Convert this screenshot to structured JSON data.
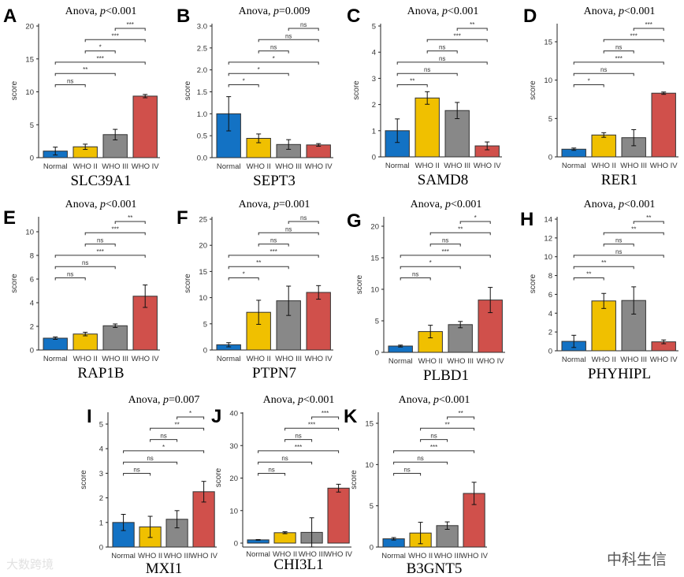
{
  "common": {
    "categories": [
      "Normal",
      "WHO II",
      "WHO III",
      "WHO IV"
    ],
    "colors": [
      "#1372c4",
      "#f0c000",
      "#888888",
      "#d0504b"
    ],
    "ylabel": "score",
    "title_prefix": "Anova, ",
    "title_p": "p",
    "comparisons": [
      [
        "Normal",
        "WHO II"
      ],
      [
        "Normal",
        "WHO III"
      ],
      [
        "Normal",
        "WHO IV"
      ],
      [
        "WHO II",
        "WHO III"
      ],
      [
        "WHO II",
        "WHO IV"
      ],
      [
        "WHO III",
        "WHO IV"
      ]
    ]
  },
  "chart_data": [
    {
      "type": "bar",
      "letter": "A",
      "gene": "SLC39A1",
      "stat": "<0.001",
      "ticks": [
        0,
        5,
        10,
        15,
        20
      ],
      "values": [
        1.0,
        1.65,
        3.5,
        9.35
      ],
      "errors": [
        0.6,
        0.4,
        0.8,
        0.25
      ],
      "sig": [
        "ns",
        "**",
        "***",
        "*",
        "***",
        "***"
      ]
    },
    {
      "type": "bar",
      "letter": "B",
      "gene": "SEPT3",
      "stat": "=0.009",
      "ticks": [
        0.0,
        0.5,
        1.0,
        1.5,
        2.0,
        2.5,
        3.0
      ],
      "values": [
        1.0,
        0.44,
        0.3,
        0.29
      ],
      "errors": [
        0.39,
        0.1,
        0.11,
        0.03
      ],
      "sig": [
        "*",
        "*",
        "*",
        "ns",
        "ns",
        "ns"
      ]
    },
    {
      "type": "bar",
      "letter": "C",
      "gene": "SAMD8",
      "stat": "<0.001",
      "ticks": [
        0,
        1,
        2,
        3,
        4,
        5
      ],
      "values": [
        1.0,
        2.25,
        1.77,
        0.42
      ],
      "errors": [
        0.45,
        0.24,
        0.31,
        0.15
      ],
      "sig": [
        "**",
        "ns",
        "ns",
        "ns",
        "***",
        "**"
      ]
    },
    {
      "type": "bar",
      "letter": "D",
      "gene": "RER1",
      "stat": "<0.001",
      "ticks": [
        0,
        5,
        10,
        15
      ],
      "values": [
        1.0,
        2.85,
        2.5,
        8.3
      ],
      "errors": [
        0.15,
        0.3,
        1.05,
        0.15
      ],
      "sig": [
        "*",
        "ns",
        "***",
        "ns",
        "***",
        "***"
      ]
    },
    {
      "type": "bar",
      "letter": "E",
      "gene": "RAP1B",
      "stat": "<0.001",
      "ticks": [
        0,
        2,
        4,
        6,
        8,
        10
      ],
      "values": [
        1.0,
        1.35,
        2.05,
        4.55
      ],
      "errors": [
        0.1,
        0.15,
        0.15,
        0.95
      ],
      "sig": [
        "ns",
        "ns",
        "***",
        "ns",
        "***",
        "**"
      ]
    },
    {
      "type": "bar",
      "letter": "F",
      "gene": "PTPN7",
      "stat": "=0.001",
      "ticks": [
        0,
        5,
        10,
        15,
        20,
        25
      ],
      "values": [
        1.0,
        7.2,
        9.4,
        11.0
      ],
      "errors": [
        0.4,
        2.3,
        2.8,
        1.3
      ],
      "sig": [
        "*",
        "**",
        "***",
        "ns",
        "ns",
        "ns"
      ]
    },
    {
      "type": "bar",
      "letter": "G",
      "gene": "PLBD1",
      "stat": "<0.001",
      "ticks": [
        0,
        5,
        10,
        15,
        20
      ],
      "values": [
        1.0,
        3.3,
        4.4,
        8.3
      ],
      "errors": [
        0.15,
        1.0,
        0.5,
        2.0
      ],
      "sig": [
        "ns",
        "*",
        "***",
        "ns",
        "**",
        "*"
      ]
    },
    {
      "type": "bar",
      "letter": "H",
      "gene": "PHYHIPL",
      "stat": "<0.001",
      "ticks": [
        0,
        2,
        4,
        6,
        8,
        10,
        12,
        14
      ],
      "values": [
        1.0,
        5.3,
        5.35,
        0.95
      ],
      "errors": [
        0.65,
        0.8,
        1.45,
        0.2
      ],
      "sig": [
        "**",
        "**",
        "ns",
        "ns",
        "**",
        "**"
      ]
    },
    {
      "type": "bar",
      "letter": "I",
      "gene": "MXI1",
      "stat": "=0.007",
      "ticks": [
        0,
        1,
        2,
        3,
        4,
        5
      ],
      "values": [
        1.0,
        0.82,
        1.13,
        2.25
      ],
      "errors": [
        0.33,
        0.43,
        0.35,
        0.42
      ],
      "sig": [
        "ns",
        "ns",
        "*",
        "ns",
        "**",
        "*"
      ]
    },
    {
      "type": "bar",
      "letter": "J",
      "gene": "CHI3L1",
      "stat": "<0.001",
      "ticks": [
        0,
        10,
        20,
        30,
        40
      ],
      "values": [
        1.0,
        3.2,
        3.3,
        16.9
      ],
      "errors": [
        0.1,
        0.3,
        4.5,
        1.2
      ],
      "sig": [
        "ns",
        "ns",
        "***",
        "ns",
        "***",
        "***"
      ]
    },
    {
      "type": "bar",
      "letter": "K",
      "gene": "B3GNT5",
      "stat": "<0.001",
      "ticks": [
        0,
        5,
        10,
        15
      ],
      "values": [
        1.0,
        1.7,
        2.6,
        6.5
      ],
      "errors": [
        0.15,
        1.3,
        0.45,
        1.35
      ],
      "sig": [
        "ns",
        "ns",
        "***",
        "ns",
        "**",
        "**"
      ]
    }
  ],
  "watermarks": {
    "left": "大数跨境",
    "right": "中科生信"
  }
}
